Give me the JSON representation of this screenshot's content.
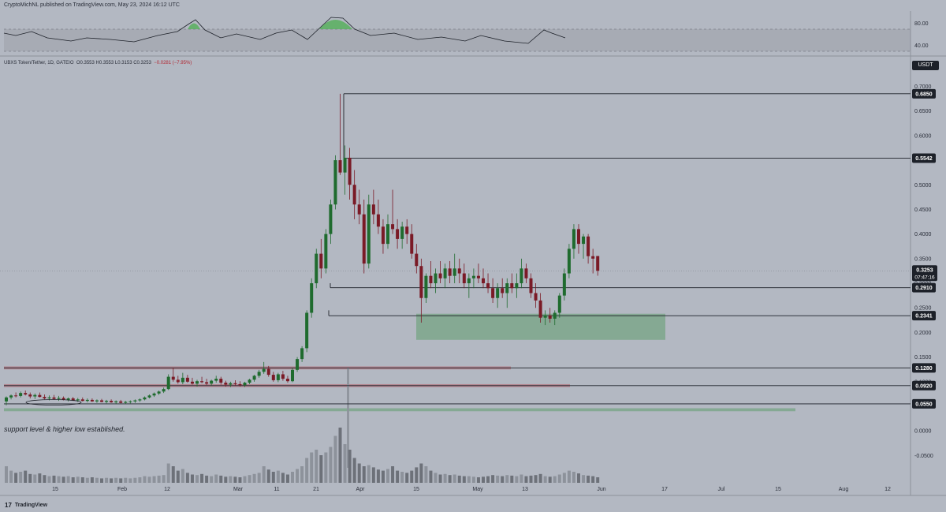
{
  "header": {
    "publisher": "CryptoMichNL published on TradingView.com, May 23, 2024 16:12 UTC"
  },
  "symbol_info": {
    "name": "UBXS Token/Tether, 1D, GATEIO",
    "ohlc": "O0.3553 H0.3553 L0.3153 C0.3253",
    "change": "−0.0281 (−7.95%)"
  },
  "currency_badge": "USDT",
  "annotation": "support level & higher low established.",
  "footer": {
    "brand": "TradingView"
  },
  "colors": {
    "background": "#b3b8c2",
    "bull": "#1f6b2e",
    "bear": "#7a1a26",
    "zone_green": "#5e9d6e",
    "zone_red": "#b05a66",
    "hline": "#1d2129",
    "volume": "#7b7f88"
  },
  "chart_data": {
    "type": "candlestick",
    "y_axis_labels": [
      "0.7000",
      "0.6500",
      "0.6000",
      "0.5500",
      "0.5000",
      "0.4500",
      "0.4000",
      "0.3500",
      "0.3000",
      "0.2500",
      "0.2000",
      "0.1500",
      "0.1000",
      "0.0500",
      "0.0000",
      "-0.0500"
    ],
    "ylim": [
      -0.075,
      0.72
    ],
    "x_axis_labels": [
      "15",
      "Feb",
      "12",
      "Mar",
      "11",
      "21",
      "Apr",
      "15",
      "May",
      "13",
      "Jun",
      "17",
      "Jul",
      "15",
      "Aug",
      "12"
    ],
    "horizontal_levels": [
      0.685,
      0.5542,
      0.291,
      0.2341,
      0.128,
      0.092,
      0.055
    ],
    "level_labels": [
      "0.6850",
      "0.5542",
      "0.2910",
      "0.2341",
      "0.1280",
      "0.0920",
      "0.0550"
    ],
    "current_price": "0.3253",
    "countdown": "07:47:16",
    "demand_zone": [
      0.185,
      0.238
    ],
    "rsi_labels": [
      "80.00",
      "40.00"
    ],
    "candles": [
      [
        0.06,
        0.07,
        0.052,
        0.068
      ],
      [
        0.068,
        0.074,
        0.064,
        0.072
      ],
      [
        0.072,
        0.078,
        0.068,
        0.071
      ],
      [
        0.071,
        0.08,
        0.068,
        0.077
      ],
      [
        0.077,
        0.082,
        0.072,
        0.074
      ],
      [
        0.074,
        0.078,
        0.066,
        0.07
      ],
      [
        0.07,
        0.076,
        0.065,
        0.073
      ],
      [
        0.073,
        0.078,
        0.068,
        0.069
      ],
      [
        0.069,
        0.074,
        0.064,
        0.066
      ],
      [
        0.066,
        0.072,
        0.062,
        0.068
      ],
      [
        0.068,
        0.073,
        0.063,
        0.065
      ],
      [
        0.065,
        0.071,
        0.061,
        0.067
      ],
      [
        0.067,
        0.07,
        0.062,
        0.063
      ],
      [
        0.063,
        0.068,
        0.06,
        0.066
      ],
      [
        0.066,
        0.069,
        0.061,
        0.062
      ],
      [
        0.062,
        0.067,
        0.059,
        0.064
      ],
      [
        0.064,
        0.068,
        0.06,
        0.061
      ],
      [
        0.061,
        0.066,
        0.058,
        0.063
      ],
      [
        0.063,
        0.066,
        0.059,
        0.06
      ],
      [
        0.06,
        0.064,
        0.057,
        0.062
      ],
      [
        0.062,
        0.065,
        0.058,
        0.059
      ],
      [
        0.059,
        0.063,
        0.056,
        0.061
      ],
      [
        0.061,
        0.064,
        0.057,
        0.058
      ],
      [
        0.058,
        0.062,
        0.055,
        0.06
      ],
      [
        0.06,
        0.063,
        0.056,
        0.057
      ],
      [
        0.057,
        0.061,
        0.055,
        0.059
      ],
      [
        0.059,
        0.062,
        0.056,
        0.06
      ],
      [
        0.06,
        0.064,
        0.057,
        0.062
      ],
      [
        0.062,
        0.066,
        0.059,
        0.064
      ],
      [
        0.064,
        0.07,
        0.062,
        0.068
      ],
      [
        0.068,
        0.074,
        0.066,
        0.072
      ],
      [
        0.072,
        0.078,
        0.069,
        0.076
      ],
      [
        0.076,
        0.082,
        0.073,
        0.08
      ],
      [
        0.08,
        0.088,
        0.077,
        0.085
      ],
      [
        0.085,
        0.115,
        0.083,
        0.11
      ],
      [
        0.11,
        0.128,
        0.1,
        0.104
      ],
      [
        0.104,
        0.112,
        0.096,
        0.099
      ],
      [
        0.099,
        0.118,
        0.095,
        0.108
      ],
      [
        0.108,
        0.114,
        0.098,
        0.1
      ],
      [
        0.1,
        0.108,
        0.094,
        0.096
      ],
      [
        0.096,
        0.104,
        0.09,
        0.101
      ],
      [
        0.101,
        0.11,
        0.097,
        0.099
      ],
      [
        0.099,
        0.106,
        0.093,
        0.096
      ],
      [
        0.096,
        0.104,
        0.092,
        0.102
      ],
      [
        0.102,
        0.112,
        0.098,
        0.106
      ],
      [
        0.106,
        0.11,
        0.094,
        0.098
      ],
      [
        0.098,
        0.102,
        0.09,
        0.094
      ],
      [
        0.094,
        0.1,
        0.089,
        0.097
      ],
      [
        0.097,
        0.103,
        0.092,
        0.095
      ],
      [
        0.095,
        0.101,
        0.09,
        0.093
      ],
      [
        0.093,
        0.1,
        0.089,
        0.098
      ],
      [
        0.098,
        0.106,
        0.095,
        0.104
      ],
      [
        0.104,
        0.114,
        0.1,
        0.112
      ],
      [
        0.112,
        0.124,
        0.108,
        0.12
      ],
      [
        0.12,
        0.14,
        0.116,
        0.126
      ],
      [
        0.126,
        0.132,
        0.11,
        0.114
      ],
      [
        0.114,
        0.12,
        0.1,
        0.103
      ],
      [
        0.103,
        0.118,
        0.099,
        0.115
      ],
      [
        0.115,
        0.122,
        0.102,
        0.106
      ],
      [
        0.106,
        0.112,
        0.098,
        0.101
      ],
      [
        0.101,
        0.128,
        0.099,
        0.124
      ],
      [
        0.124,
        0.15,
        0.12,
        0.146
      ],
      [
        0.146,
        0.172,
        0.14,
        0.168
      ],
      [
        0.168,
        0.245,
        0.16,
        0.24
      ],
      [
        0.24,
        0.31,
        0.23,
        0.3
      ],
      [
        0.3,
        0.37,
        0.29,
        0.36
      ],
      [
        0.36,
        0.39,
        0.31,
        0.33
      ],
      [
        0.33,
        0.41,
        0.32,
        0.4
      ],
      [
        0.4,
        0.47,
        0.38,
        0.46
      ],
      [
        0.46,
        0.56,
        0.45,
        0.55
      ],
      [
        0.55,
        0.685,
        0.52,
        0.525
      ],
      [
        0.525,
        0.58,
        0.48,
        0.555
      ],
      [
        0.555,
        0.575,
        0.47,
        0.5
      ],
      [
        0.5,
        0.53,
        0.43,
        0.46
      ],
      [
        0.46,
        0.49,
        0.42,
        0.44
      ],
      [
        0.44,
        0.47,
        0.32,
        0.34
      ],
      [
        0.34,
        0.48,
        0.33,
        0.46
      ],
      [
        0.46,
        0.49,
        0.42,
        0.44
      ],
      [
        0.44,
        0.47,
        0.4,
        0.415
      ],
      [
        0.415,
        0.43,
        0.36,
        0.38
      ],
      [
        0.38,
        0.44,
        0.37,
        0.42
      ],
      [
        0.42,
        0.49,
        0.4,
        0.41
      ],
      [
        0.41,
        0.43,
        0.37,
        0.39
      ],
      [
        0.39,
        0.425,
        0.37,
        0.415
      ],
      [
        0.415,
        0.43,
        0.38,
        0.4
      ],
      [
        0.4,
        0.42,
        0.35,
        0.36
      ],
      [
        0.36,
        0.38,
        0.32,
        0.335
      ],
      [
        0.335,
        0.35,
        0.22,
        0.27
      ],
      [
        0.27,
        0.32,
        0.26,
        0.315
      ],
      [
        0.315,
        0.345,
        0.29,
        0.3
      ],
      [
        0.3,
        0.33,
        0.28,
        0.32
      ],
      [
        0.32,
        0.345,
        0.3,
        0.31
      ],
      [
        0.31,
        0.34,
        0.29,
        0.33
      ],
      [
        0.33,
        0.345,
        0.3,
        0.315
      ],
      [
        0.315,
        0.36,
        0.3,
        0.33
      ],
      [
        0.33,
        0.35,
        0.3,
        0.32
      ],
      [
        0.32,
        0.34,
        0.29,
        0.3
      ],
      [
        0.3,
        0.32,
        0.27,
        0.31
      ],
      [
        0.31,
        0.33,
        0.29,
        0.315
      ],
      [
        0.315,
        0.34,
        0.3,
        0.31
      ],
      [
        0.31,
        0.33,
        0.29,
        0.3
      ],
      [
        0.3,
        0.32,
        0.28,
        0.29
      ],
      [
        0.29,
        0.31,
        0.26,
        0.27
      ],
      [
        0.27,
        0.3,
        0.25,
        0.29
      ],
      [
        0.29,
        0.31,
        0.27,
        0.28
      ],
      [
        0.28,
        0.31,
        0.25,
        0.3
      ],
      [
        0.3,
        0.32,
        0.28,
        0.29
      ],
      [
        0.29,
        0.32,
        0.27,
        0.3
      ],
      [
        0.3,
        0.35,
        0.29,
        0.33
      ],
      [
        0.33,
        0.34,
        0.3,
        0.31
      ],
      [
        0.31,
        0.32,
        0.27,
        0.28
      ],
      [
        0.28,
        0.3,
        0.25,
        0.265
      ],
      [
        0.265,
        0.28,
        0.22,
        0.23
      ],
      [
        0.23,
        0.245,
        0.215,
        0.235
      ],
      [
        0.235,
        0.25,
        0.22,
        0.228
      ],
      [
        0.228,
        0.245,
        0.215,
        0.24
      ],
      [
        0.24,
        0.28,
        0.23,
        0.275
      ],
      [
        0.275,
        0.33,
        0.265,
        0.32
      ],
      [
        0.32,
        0.38,
        0.31,
        0.37
      ],
      [
        0.37,
        0.42,
        0.35,
        0.41
      ],
      [
        0.41,
        0.42,
        0.36,
        0.38
      ],
      [
        0.38,
        0.4,
        0.35,
        0.395
      ],
      [
        0.395,
        0.4,
        0.34,
        0.355
      ],
      [
        0.355,
        0.37,
        0.32,
        0.35
      ],
      [
        0.3553,
        0.3553,
        0.3153,
        0.3253
      ]
    ],
    "volumes": [
      0.3,
      0.22,
      0.18,
      0.2,
      0.22,
      0.16,
      0.15,
      0.17,
      0.14,
      0.12,
      0.13,
      0.12,
      0.11,
      0.12,
      0.1,
      0.11,
      0.1,
      0.09,
      0.1,
      0.09,
      0.08,
      0.09,
      0.08,
      0.09,
      0.08,
      0.09,
      0.08,
      0.09,
      0.1,
      0.12,
      0.11,
      0.12,
      0.13,
      0.14,
      0.35,
      0.3,
      0.22,
      0.25,
      0.18,
      0.15,
      0.14,
      0.16,
      0.13,
      0.12,
      0.15,
      0.13,
      0.11,
      0.12,
      0.11,
      0.1,
      0.12,
      0.14,
      0.16,
      0.18,
      0.3,
      0.24,
      0.2,
      0.22,
      0.18,
      0.15,
      0.2,
      0.25,
      0.3,
      0.45,
      0.55,
      0.6,
      0.5,
      0.55,
      0.65,
      0.85,
      1.0,
      0.7,
      0.6,
      0.45,
      0.35,
      0.3,
      0.32,
      0.28,
      0.24,
      0.22,
      0.25,
      0.3,
      0.22,
      0.2,
      0.18,
      0.22,
      0.28,
      0.35,
      0.3,
      0.22,
      0.18,
      0.15,
      0.16,
      0.14,
      0.15,
      0.13,
      0.12,
      0.12,
      0.11,
      0.1,
      0.11,
      0.12,
      0.14,
      0.13,
      0.12,
      0.14,
      0.13,
      0.12,
      0.15,
      0.12,
      0.13,
      0.14,
      0.16,
      0.12,
      0.11,
      0.12,
      0.15,
      0.18,
      0.22,
      0.2,
      0.17,
      0.14,
      0.13,
      0.12,
      0.1
    ]
  }
}
